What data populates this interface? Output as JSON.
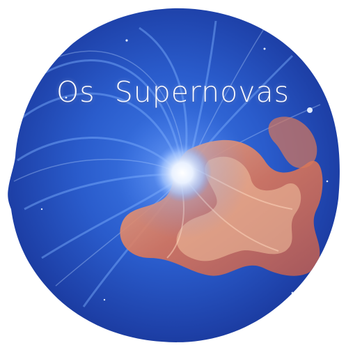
{
  "logo": {
    "title": "Os  Supernovas",
    "colors": {
      "deep_blue": "#1b3a9e",
      "mid_blue": "#2f63d6",
      "light_blue": "#8fc0ff",
      "core": "#f3f7ff",
      "orange": "#d9785a",
      "pale_orange": "#f0b08a",
      "background": "#ffffff"
    }
  }
}
